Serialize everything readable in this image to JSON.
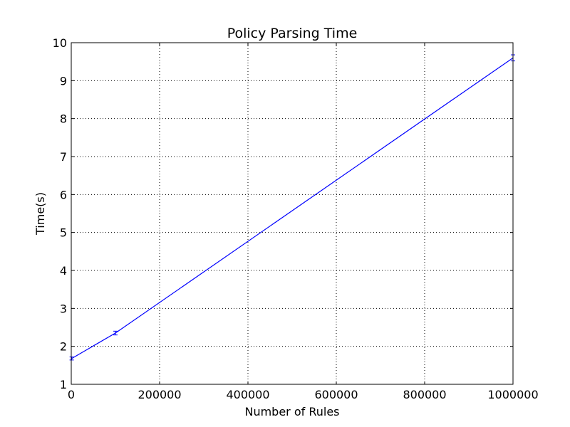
{
  "chart_data": {
    "type": "line",
    "title": "Policy Parsing Time",
    "xlabel": "Number of Rules",
    "ylabel": "Time(s)",
    "xlim": [
      0,
      1000000
    ],
    "ylim": [
      1,
      10
    ],
    "grid": true,
    "x_ticks": [
      0,
      200000,
      400000,
      600000,
      800000,
      1000000
    ],
    "x_tick_labels": [
      "0",
      "200000",
      "400000",
      "600000",
      "800000",
      "1000000"
    ],
    "y_ticks": [
      1,
      2,
      3,
      4,
      5,
      6,
      7,
      8,
      9,
      10
    ],
    "y_tick_labels": [
      "1",
      "2",
      "3",
      "4",
      "5",
      "6",
      "7",
      "8",
      "9",
      "10"
    ],
    "series": [
      {
        "color": "#0000ff",
        "x": [
          1000,
          100000,
          1000000
        ],
        "y": [
          1.68,
          2.35,
          9.6
        ],
        "error": [
          0.04,
          0.05,
          0.08
        ]
      }
    ]
  }
}
